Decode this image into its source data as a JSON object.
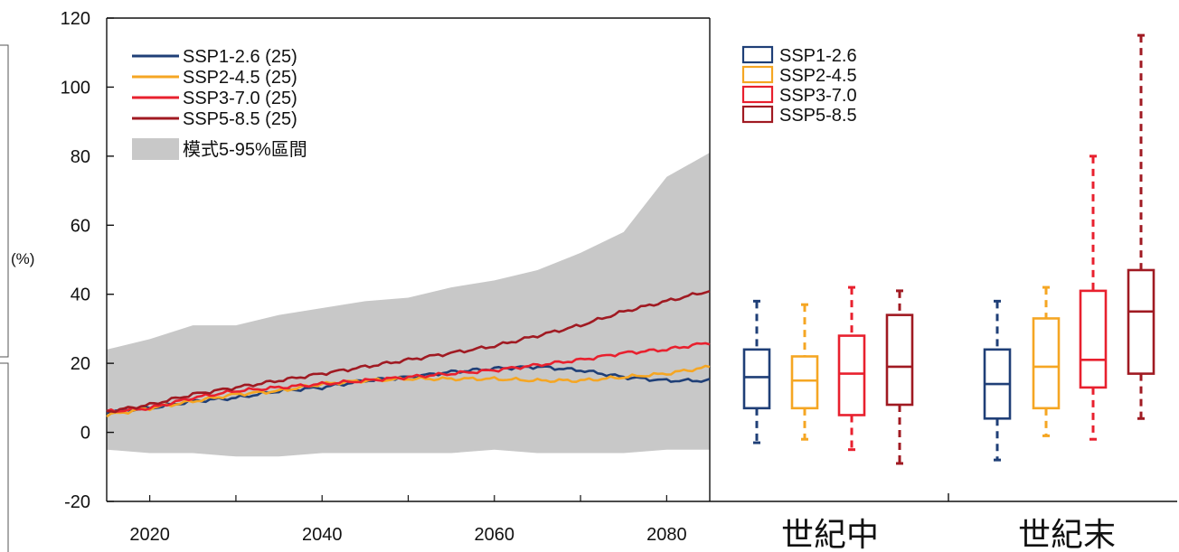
{
  "chart_data": [
    {
      "type": "line",
      "ylabel": "(%)",
      "xlim": [
        2015,
        2085
      ],
      "ylim": [
        -20,
        120
      ],
      "x_ticks": [
        2020,
        2040,
        2060,
        2080
      ],
      "y_ticks": [
        -20,
        0,
        20,
        40,
        60,
        80,
        100,
        120
      ],
      "legend_position": "top-left",
      "band": {
        "name": "模式5-95%區間",
        "color": "#c8c8c8",
        "x": [
          2015,
          2020,
          2025,
          2030,
          2035,
          2040,
          2045,
          2050,
          2055,
          2060,
          2065,
          2070,
          2075,
          2080,
          2085
        ],
        "upper": [
          24,
          27,
          31,
          31,
          34,
          36,
          38,
          39,
          42,
          44,
          47,
          52,
          58,
          74,
          81
        ],
        "lower": [
          -5,
          -6,
          -6,
          -7,
          -7,
          -6,
          -6,
          -6,
          -6,
          -5,
          -6,
          -6,
          -6,
          -5,
          -5
        ]
      },
      "series": [
        {
          "name": "SSP1-2.6 (25)",
          "color": "#1f3f77",
          "x": [
            2015,
            2020,
            2025,
            2030,
            2035,
            2040,
            2045,
            2050,
            2055,
            2060,
            2065,
            2070,
            2075,
            2080,
            2085
          ],
          "values": [
            6,
            7,
            9,
            10,
            12,
            13,
            15,
            16,
            17.5,
            18.5,
            19,
            18,
            16,
            15,
            15
          ]
        },
        {
          "name": "SSP2-4.5 (25)",
          "color": "#f5a623",
          "x": [
            2015,
            2020,
            2025,
            2030,
            2035,
            2040,
            2045,
            2050,
            2055,
            2060,
            2065,
            2070,
            2075,
            2080,
            2085
          ],
          "values": [
            5,
            7,
            9,
            11,
            12,
            14,
            15,
            15.5,
            15.5,
            15.5,
            15,
            15,
            16,
            17,
            19
          ]
        },
        {
          "name": "SSP3-7.0 (25)",
          "color": "#e8202e",
          "x": [
            2015,
            2020,
            2025,
            2030,
            2035,
            2040,
            2045,
            2050,
            2055,
            2060,
            2065,
            2070,
            2075,
            2080,
            2085
          ],
          "values": [
            6,
            7,
            10,
            12,
            13,
            14,
            15,
            16,
            17,
            18,
            19.5,
            21,
            23,
            24,
            26
          ]
        },
        {
          "name": "SSP5-8.5 (25)",
          "color": "#a01a22",
          "x": [
            2015,
            2020,
            2025,
            2030,
            2035,
            2040,
            2045,
            2050,
            2055,
            2060,
            2065,
            2070,
            2075,
            2080,
            2085
          ],
          "values": [
            6,
            8,
            11,
            13,
            15,
            17,
            19,
            21,
            23,
            25,
            28,
            31,
            35,
            38,
            41
          ]
        }
      ]
    },
    {
      "type": "box",
      "categories": [
        "世紀中",
        "世紀末"
      ],
      "legend_position": "top-left",
      "series": [
        {
          "name": "SSP1-2.6",
          "color": "#1f3f77",
          "boxes": [
            {
              "min": -3,
              "q1": 7,
              "median": 16,
              "q3": 24,
              "max": 38
            },
            {
              "min": -8,
              "q1": 4,
              "median": 14,
              "q3": 24,
              "max": 38
            }
          ]
        },
        {
          "name": "SSP2-4.5",
          "color": "#f5a623",
          "boxes": [
            {
              "min": -2,
              "q1": 7,
              "median": 15,
              "q3": 22,
              "max": 37
            },
            {
              "min": -1,
              "q1": 7,
              "median": 19,
              "q3": 33,
              "max": 42
            }
          ]
        },
        {
          "name": "SSP3-7.0",
          "color": "#e8202e",
          "boxes": [
            {
              "min": -5,
              "q1": 5,
              "median": 17,
              "q3": 28,
              "max": 42
            },
            {
              "min": -2,
              "q1": 13,
              "median": 21,
              "q3": 41,
              "max": 80
            }
          ]
        },
        {
          "name": "SSP5-8.5",
          "color": "#a01a22",
          "boxes": [
            {
              "min": -9,
              "q1": 8,
              "median": 19,
              "q3": 34,
              "max": 41
            },
            {
              "min": 4,
              "q1": 17,
              "median": 35,
              "q3": 47,
              "max": 115
            }
          ]
        }
      ]
    }
  ]
}
